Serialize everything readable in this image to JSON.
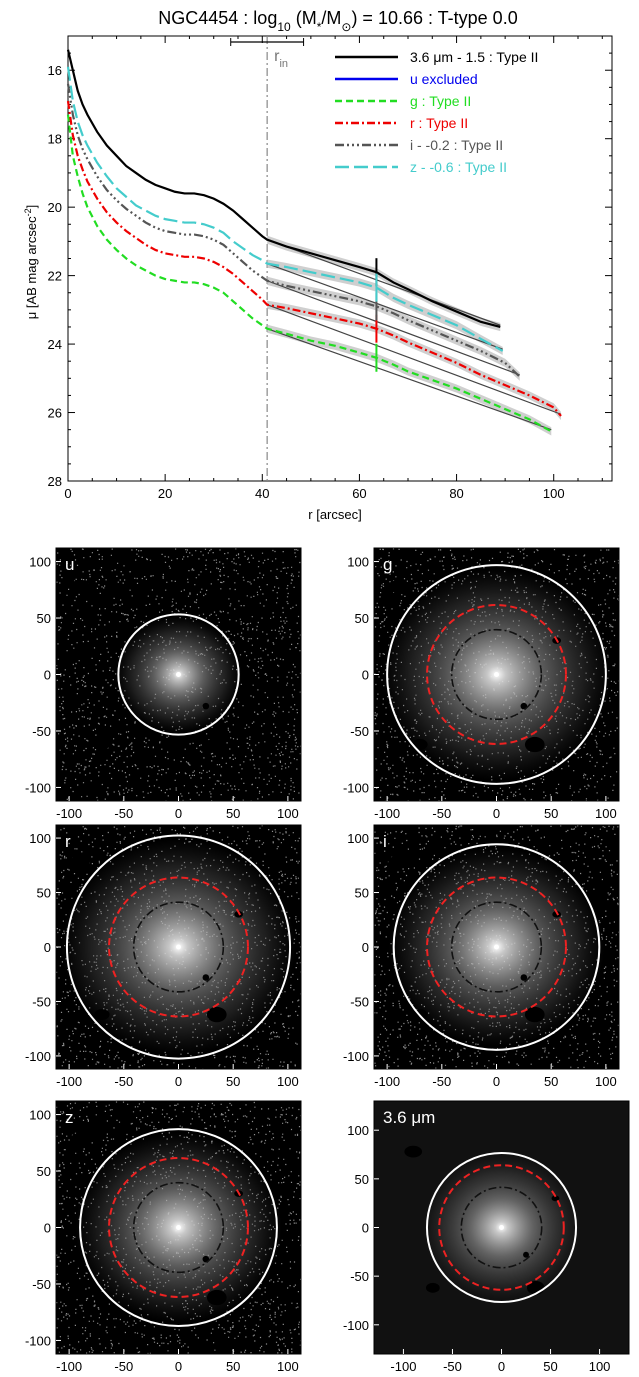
{
  "chart_data": [
    {
      "type": "line",
      "title": "NGC4454 : log10 (M*/M⊙) = 10.66 : T-type 0.0",
      "title_parts": {
        "prefix": "NGC4454 : log",
        "sub": "10",
        "mid": " (M",
        "star": "*",
        "slash": "/M",
        "sun": "⊙",
        "suffix": ") = 10.66 : T-type 0.0"
      },
      "xlabel": "r [arcsec]",
      "ylabel": "μ [AB mag arcsec⁻²]",
      "ylabel_parts": {
        "main": "μ [AB mag arcsec",
        "sup": "-2",
        "end": "]"
      },
      "xlim": [
        0,
        112
      ],
      "ylim": [
        28,
        15
      ],
      "y_inverted": true,
      "x_ticks": [
        "0",
        "20",
        "40",
        "60",
        "80",
        "100"
      ],
      "x_tick_values": [
        0,
        20,
        40,
        60,
        80,
        100
      ],
      "y_ticks": [
        "16",
        "18",
        "20",
        "22",
        "24",
        "26",
        "28"
      ],
      "y_tick_values": [
        16,
        18,
        20,
        22,
        24,
        26,
        28
      ],
      "grid": false,
      "legend_position": "top-right",
      "r_in": 41,
      "r_in_label": {
        "main": "r",
        "sub": "in"
      },
      "r_in_errorbar": [
        33.5,
        48.5
      ],
      "break_radius": 63.5,
      "series": [
        {
          "name": "3.6 μm - 1.5 : Type II",
          "color": "#000000",
          "dash": "solid",
          "x": [
            0,
            1,
            2,
            3,
            4,
            6,
            8,
            10,
            12,
            14,
            16,
            18,
            20,
            22,
            24,
            26,
            28,
            30,
            32,
            34,
            36,
            38,
            40,
            41,
            45,
            50,
            55,
            60,
            63.5,
            67,
            70,
            75,
            80,
            85,
            89
          ],
          "y": [
            15.4,
            16.0,
            16.6,
            17.0,
            17.3,
            17.8,
            18.2,
            18.5,
            18.8,
            19.0,
            19.2,
            19.35,
            19.45,
            19.55,
            19.6,
            19.6,
            19.65,
            19.75,
            19.9,
            20.1,
            20.35,
            20.6,
            20.85,
            20.95,
            21.15,
            21.35,
            21.55,
            21.75,
            21.9,
            22.2,
            22.4,
            22.75,
            23.05,
            23.35,
            23.5
          ]
        },
        {
          "name": "u excluded",
          "color": "#0000ee",
          "dash": "solid",
          "x": [],
          "y": []
        },
        {
          "name": "g : Type II",
          "color": "#22dd22",
          "dash": "dashed",
          "x": [
            0,
            1,
            2,
            3,
            4,
            6,
            8,
            10,
            12,
            14,
            16,
            18,
            20,
            22,
            24,
            26,
            28,
            30,
            32,
            34,
            36,
            38,
            40,
            41,
            45,
            50,
            55,
            60,
            63.5,
            67,
            70,
            75,
            80,
            85,
            90,
            95,
            99.5
          ],
          "y": [
            17.3,
            18.5,
            19.1,
            19.6,
            20.0,
            20.55,
            20.95,
            21.25,
            21.5,
            21.7,
            21.85,
            22.0,
            22.1,
            22.15,
            22.2,
            22.2,
            22.25,
            22.35,
            22.5,
            22.75,
            23.0,
            23.25,
            23.45,
            23.55,
            23.7,
            23.9,
            24.05,
            24.25,
            24.4,
            24.6,
            24.8,
            25.05,
            25.3,
            25.6,
            25.9,
            26.2,
            26.55
          ]
        },
        {
          "name": "r : Type II",
          "color": "#ee0000",
          "dash": "dashdot",
          "x": [
            0,
            1,
            2,
            3,
            4,
            6,
            8,
            10,
            12,
            14,
            16,
            18,
            20,
            22,
            24,
            26,
            28,
            30,
            32,
            34,
            36,
            38,
            40,
            41,
            45,
            50,
            55,
            60,
            63.5,
            67,
            70,
            75,
            80,
            85,
            90,
            95,
            100,
            101.5
          ],
          "y": [
            16.9,
            17.9,
            18.5,
            18.9,
            19.25,
            19.75,
            20.15,
            20.45,
            20.7,
            20.9,
            21.1,
            21.25,
            21.35,
            21.4,
            21.45,
            21.45,
            21.5,
            21.6,
            21.75,
            21.95,
            22.2,
            22.45,
            22.7,
            22.85,
            22.95,
            23.1,
            23.25,
            23.4,
            23.55,
            23.75,
            23.95,
            24.25,
            24.55,
            24.9,
            25.2,
            25.5,
            25.85,
            26.1
          ]
        },
        {
          "name": "i - -0.2 : Type II",
          "color": "#555555",
          "dash": "dashdotdotdot",
          "x": [
            0,
            1,
            2,
            3,
            4,
            6,
            8,
            10,
            12,
            14,
            16,
            18,
            20,
            22,
            24,
            26,
            28,
            30,
            32,
            34,
            36,
            38,
            40,
            41,
            45,
            50,
            55,
            60,
            63.5,
            67,
            70,
            75,
            80,
            85,
            90,
            93
          ],
          "y": [
            16.4,
            17.3,
            17.9,
            18.3,
            18.6,
            19.1,
            19.5,
            19.8,
            20.05,
            20.25,
            20.45,
            20.6,
            20.7,
            20.75,
            20.8,
            20.8,
            20.85,
            20.95,
            21.1,
            21.35,
            21.6,
            21.85,
            22.05,
            22.15,
            22.3,
            22.45,
            22.6,
            22.75,
            22.9,
            23.1,
            23.3,
            23.6,
            23.9,
            24.2,
            24.55,
            24.95
          ]
        },
        {
          "name": "z - -0.6 : Type II",
          "color": "#44cccc",
          "dash": "longdash",
          "x": [
            0,
            1,
            2,
            3,
            4,
            6,
            8,
            10,
            12,
            14,
            16,
            18,
            20,
            22,
            24,
            26,
            28,
            30,
            32,
            34,
            36,
            38,
            40,
            41,
            45,
            50,
            55,
            60,
            63.5,
            67,
            70,
            75,
            80,
            85,
            89.5
          ],
          "y": [
            15.9,
            16.9,
            17.5,
            17.9,
            18.2,
            18.7,
            19.1,
            19.45,
            19.7,
            19.95,
            20.1,
            20.25,
            20.35,
            20.4,
            20.45,
            20.45,
            20.5,
            20.6,
            20.75,
            21.0,
            21.2,
            21.4,
            21.55,
            21.65,
            21.75,
            21.9,
            22.05,
            22.2,
            22.35,
            22.65,
            22.85,
            23.15,
            23.45,
            23.85,
            24.2
          ]
        }
      ]
    },
    {
      "type": "image",
      "panels": [
        {
          "label": "u",
          "r_outer": 55,
          "r_break": null,
          "r_in": null,
          "background": "#000000",
          "style": "noise",
          "x_ticks": [
            "-100",
            "-50",
            "0",
            "50",
            "100"
          ],
          "y_ticks": [
            "100",
            "50",
            "0",
            "-50",
            "-100"
          ],
          "xlim": [
            -112,
            112
          ],
          "ylim": [
            -112,
            112
          ]
        },
        {
          "label": "g",
          "r_outer": 100,
          "r_break": 63.5,
          "r_in": 41,
          "background": "#000000",
          "style": "noise",
          "x_ticks": [
            "-100",
            "-50",
            "0",
            "50",
            "100"
          ],
          "y_ticks": [
            "100",
            "50",
            "0",
            "-50",
            "-100"
          ],
          "xlim": [
            -112,
            112
          ],
          "ylim": [
            -112,
            112
          ]
        },
        {
          "label": "r",
          "r_outer": 102,
          "r_break": 63.5,
          "r_in": 41,
          "background": "#000000",
          "style": "noise",
          "x_ticks": [
            "-100",
            "-50",
            "0",
            "50",
            "100"
          ],
          "y_ticks": [
            "100",
            "50",
            "0",
            "-50",
            "-100"
          ],
          "xlim": [
            -112,
            112
          ],
          "ylim": [
            -112,
            112
          ]
        },
        {
          "label": "i",
          "r_outer": 94,
          "r_break": 63.5,
          "r_in": 41,
          "background": "#000000",
          "style": "noise",
          "x_ticks": [
            "-100",
            "-50",
            "0",
            "50",
            "100"
          ],
          "y_ticks": [
            "100",
            "50",
            "0",
            "-50",
            "-100"
          ],
          "xlim": [
            -112,
            112
          ],
          "ylim": [
            -112,
            112
          ]
        },
        {
          "label": "z",
          "r_outer": 90,
          "r_break": 63.5,
          "r_in": 41,
          "background": "#000000",
          "style": "noise",
          "x_ticks": [
            "-100",
            "-50",
            "0",
            "50",
            "100"
          ],
          "y_ticks": [
            "100",
            "50",
            "0",
            "-50",
            "-100"
          ],
          "xlim": [
            -112,
            112
          ],
          "ylim": [
            -112,
            112
          ]
        },
        {
          "label": "3.6 μm",
          "r_outer": 76,
          "r_break": 63.5,
          "r_in": 41,
          "background": "#111111",
          "style": "smooth",
          "x_ticks": [
            "-100",
            "-50",
            "0",
            "50",
            "100"
          ],
          "y_ticks": [
            "100",
            "50",
            "0",
            "-50",
            "-100"
          ],
          "xlim": [
            -130,
            130
          ],
          "ylim": [
            -130,
            130
          ]
        }
      ]
    }
  ]
}
